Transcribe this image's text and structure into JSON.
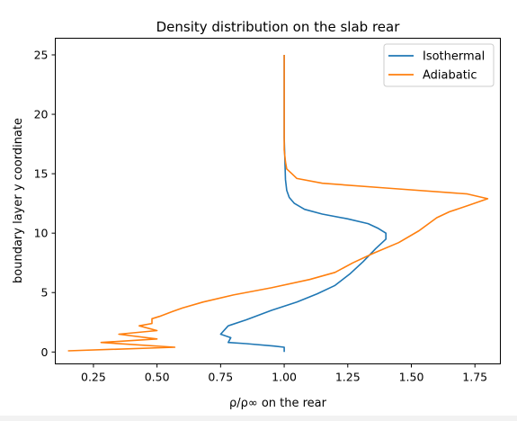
{
  "chart_data": {
    "type": "line",
    "title": "Density distribution on the slab rear",
    "xlabel": "ρ/ρ∞ on the rear",
    "ylabel": "boundary layer y coordinate",
    "xlim": [
      0.1,
      1.85
    ],
    "ylim": [
      -1.0,
      26.4
    ],
    "xticks": [
      0.25,
      0.5,
      0.75,
      1.0,
      1.25,
      1.5,
      1.75
    ],
    "xtick_labels": [
      "0.25",
      "0.50",
      "0.75",
      "1.00",
      "1.25",
      "1.50",
      "1.75"
    ],
    "yticks": [
      0,
      5,
      10,
      15,
      20,
      25
    ],
    "ytick_labels": [
      "0",
      "5",
      "10",
      "15",
      "20",
      "25"
    ],
    "grid": false,
    "legend_position": "top-right",
    "series": [
      {
        "name": "Isothermal",
        "color": "#1f77b4",
        "points": [
          [
            1.0,
            0.0
          ],
          [
            1.0,
            0.4
          ],
          [
            0.96,
            0.5
          ],
          [
            0.85,
            0.7
          ],
          [
            0.78,
            0.8
          ],
          [
            0.79,
            1.2
          ],
          [
            0.75,
            1.5
          ],
          [
            0.78,
            2.2
          ],
          [
            0.85,
            2.7
          ],
          [
            0.95,
            3.5
          ],
          [
            1.05,
            4.2
          ],
          [
            1.13,
            4.9
          ],
          [
            1.2,
            5.6
          ],
          [
            1.26,
            6.6
          ],
          [
            1.31,
            7.6
          ],
          [
            1.36,
            8.7
          ],
          [
            1.4,
            9.5
          ],
          [
            1.4,
            10.0
          ],
          [
            1.37,
            10.4
          ],
          [
            1.33,
            10.8
          ],
          [
            1.25,
            11.2
          ],
          [
            1.15,
            11.6
          ],
          [
            1.08,
            12.0
          ],
          [
            1.04,
            12.5
          ],
          [
            1.02,
            13.0
          ],
          [
            1.01,
            13.6
          ],
          [
            1.005,
            14.5
          ],
          [
            1.003,
            16.0
          ],
          [
            1.0,
            18.0
          ],
          [
            1.0,
            20.0
          ],
          [
            1.0,
            22.0
          ],
          [
            1.0,
            25.0
          ]
        ]
      },
      {
        "name": "Adiabatic",
        "color": "#ff7f0e",
        "points": [
          [
            0.15,
            0.1
          ],
          [
            0.57,
            0.4
          ],
          [
            0.28,
            0.8
          ],
          [
            0.5,
            1.1
          ],
          [
            0.35,
            1.5
          ],
          [
            0.5,
            1.8
          ],
          [
            0.43,
            2.2
          ],
          [
            0.48,
            2.4
          ],
          [
            0.48,
            2.8
          ],
          [
            0.51,
            3.0
          ],
          [
            0.56,
            3.4
          ],
          [
            0.6,
            3.7
          ],
          [
            0.68,
            4.2
          ],
          [
            0.8,
            4.8
          ],
          [
            0.95,
            5.4
          ],
          [
            1.1,
            6.1
          ],
          [
            1.2,
            6.7
          ],
          [
            1.27,
            7.5
          ],
          [
            1.35,
            8.3
          ],
          [
            1.45,
            9.2
          ],
          [
            1.53,
            10.2
          ],
          [
            1.6,
            11.3
          ],
          [
            1.65,
            11.8
          ],
          [
            1.72,
            12.3
          ],
          [
            1.8,
            12.9
          ],
          [
            1.72,
            13.3
          ],
          [
            1.4,
            13.8
          ],
          [
            1.15,
            14.2
          ],
          [
            1.05,
            14.6
          ],
          [
            1.03,
            15.0
          ],
          [
            1.01,
            15.4
          ],
          [
            1.005,
            16.0
          ],
          [
            1.0,
            17.0
          ],
          [
            1.0,
            20.0
          ],
          [
            1.0,
            25.0
          ]
        ]
      }
    ]
  }
}
